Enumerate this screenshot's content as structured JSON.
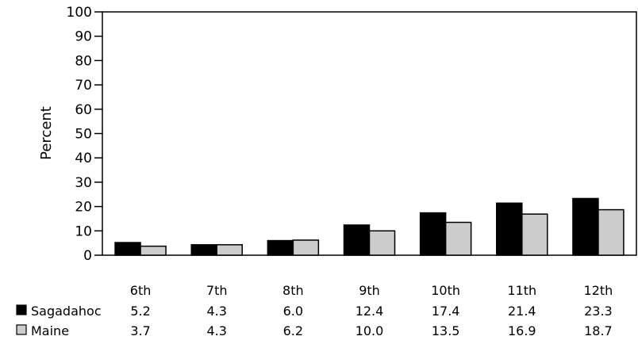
{
  "chart_data": {
    "type": "bar",
    "ylabel": "Percent",
    "ylim": [
      0,
      100
    ],
    "yticks": [
      0,
      10,
      20,
      30,
      40,
      50,
      60,
      70,
      80,
      90,
      100
    ],
    "categories": [
      "6th",
      "7th",
      "8th",
      "9th",
      "10th",
      "11th",
      "12th"
    ],
    "series": [
      {
        "name": "Sagadahoc",
        "color": "#000000",
        "values": [
          5.2,
          4.3,
          6.0,
          12.4,
          17.4,
          21.4,
          23.3
        ],
        "labels": [
          "5.2",
          "4.3",
          "6.0",
          "12.4",
          "17.4",
          "21.4",
          "23.3"
        ]
      },
      {
        "name": "Maine",
        "color": "#cccccc",
        "values": [
          3.7,
          4.3,
          6.2,
          10.0,
          13.5,
          16.9,
          18.7
        ],
        "labels": [
          "3.7",
          "4.3",
          "6.2",
          "10.0",
          "13.5",
          "16.9",
          "18.7"
        ]
      }
    ],
    "grid": false,
    "legend": "bottom-left data table"
  }
}
